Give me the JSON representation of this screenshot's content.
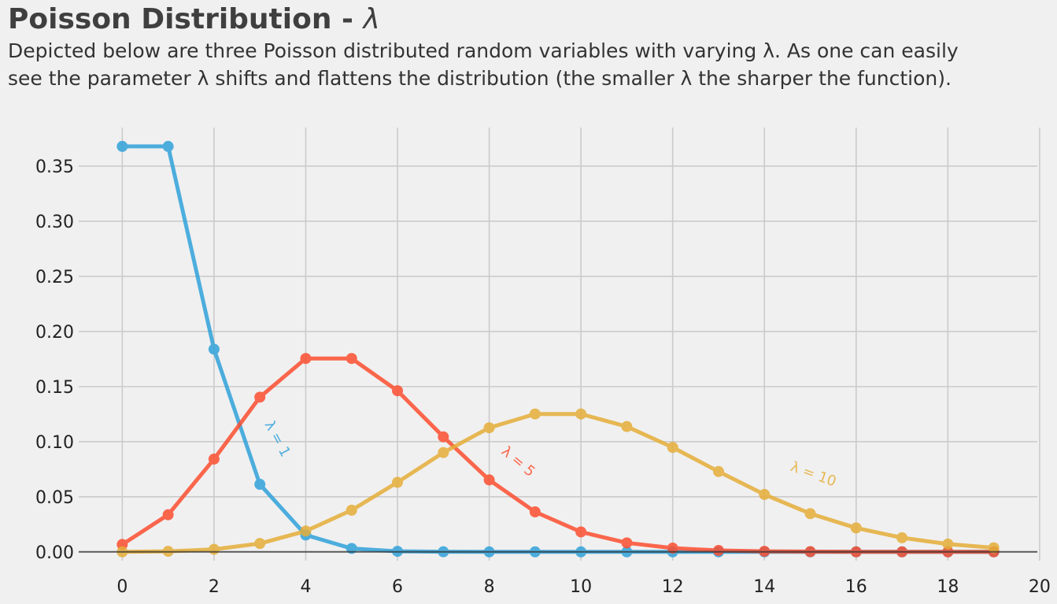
{
  "title_text": "Poisson Distribution - ",
  "title_symbol": "λ",
  "subtitle_line1": "Depicted below are three Poisson distributed random variables with varying λ. As one can easily",
  "subtitle_line2": "see the parameter λ shifts and flattens the distribution (the smaller λ the sharper the function).",
  "chart_data": {
    "type": "line",
    "title": "Poisson Distribution - λ",
    "xlabel": "",
    "ylabel": "",
    "xlim": [
      -0.95,
      19.95
    ],
    "ylim": [
      -0.008,
      0.385
    ],
    "x_ticks": [
      0,
      2,
      4,
      6,
      8,
      10,
      12,
      14,
      16,
      18,
      20
    ],
    "y_ticks": [
      0.0,
      0.05,
      0.1,
      0.15,
      0.2,
      0.25,
      0.3,
      0.35
    ],
    "x_tick_labels": [
      "0",
      "2",
      "4",
      "6",
      "8",
      "10",
      "12",
      "14",
      "16",
      "18",
      "20"
    ],
    "y_tick_labels": [
      "0.00",
      "0.05",
      "0.10",
      "0.15",
      "0.20",
      "0.25",
      "0.30",
      "0.35"
    ],
    "grid": true,
    "x": [
      0,
      1,
      2,
      3,
      4,
      5,
      6,
      7,
      8,
      9,
      10,
      11,
      12,
      13,
      14,
      15,
      16,
      17,
      18,
      19
    ],
    "series": [
      {
        "color": "#30a2da",
        "annotation": "λ = 1",
        "values": [
          0.3679,
          0.3679,
          0.1839,
          0.0613,
          0.0153,
          0.0031,
          0.0005,
          0.0001,
          0.0,
          0.0,
          0.0,
          0.0,
          0.0,
          0.0,
          0.0,
          0.0,
          0.0,
          0.0,
          0.0,
          0.0
        ]
      },
      {
        "color": "#fc4f30",
        "annotation": "λ = 5",
        "values": [
          0.0067,
          0.0337,
          0.0842,
          0.1404,
          0.1755,
          0.1755,
          0.1462,
          0.1044,
          0.0653,
          0.0363,
          0.0181,
          0.0082,
          0.0034,
          0.0013,
          0.0005,
          0.0002,
          0.0,
          0.0,
          0.0,
          0.0
        ]
      },
      {
        "color": "#e5ae38",
        "annotation": "λ = 10",
        "values": [
          0.0,
          0.0005,
          0.0023,
          0.0076,
          0.0189,
          0.0378,
          0.0631,
          0.0901,
          0.1126,
          0.1251,
          0.1251,
          0.1137,
          0.0948,
          0.0729,
          0.0521,
          0.0347,
          0.0217,
          0.0128,
          0.0071,
          0.0037
        ]
      }
    ]
  }
}
